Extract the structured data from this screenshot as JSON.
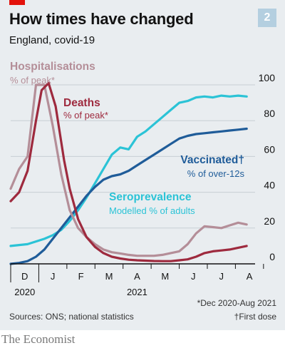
{
  "header": {
    "title": "How times have changed",
    "subtitle": "England, covid-19",
    "chart_number": "2"
  },
  "footer": {
    "note_dates": "*Dec 2020-Aug 2021",
    "note_dose": "†First dose",
    "sources": "Sources: ONS; national statistics",
    "brand": "The Economist"
  },
  "chart_data": {
    "type": "line",
    "ylim": [
      0,
      100
    ],
    "xlim": [
      0,
      8.7
    ],
    "yticks": [
      0,
      20,
      40,
      60,
      80,
      100
    ],
    "month_labels": [
      "D",
      "J",
      "F",
      "M",
      "A",
      "M",
      "J",
      "J",
      "A"
    ],
    "year_labels": [
      "2020",
      "2021"
    ],
    "grid": true,
    "series": [
      {
        "name": "Hospitalisations",
        "unit": "% of peak*",
        "color": "#b48e98",
        "points": [
          [
            0.0,
            42
          ],
          [
            0.3,
            53
          ],
          [
            0.6,
            60
          ],
          [
            0.9,
            100
          ],
          [
            1.2,
            100
          ],
          [
            1.5,
            77
          ],
          [
            1.8,
            50
          ],
          [
            2.1,
            30
          ],
          [
            2.4,
            20
          ],
          [
            2.7,
            15
          ],
          [
            3.0,
            11
          ],
          [
            3.3,
            8
          ],
          [
            3.6,
            6.5
          ],
          [
            3.9,
            5.8
          ],
          [
            4.2,
            5
          ],
          [
            4.5,
            4.5
          ],
          [
            4.8,
            4.5
          ],
          [
            5.1,
            4.5
          ],
          [
            5.4,
            5
          ],
          [
            5.7,
            6
          ],
          [
            6.0,
            7
          ],
          [
            6.3,
            11
          ],
          [
            6.6,
            17
          ],
          [
            6.9,
            21
          ],
          [
            7.2,
            20.5
          ],
          [
            7.5,
            20
          ],
          [
            7.8,
            21.5
          ],
          [
            8.1,
            23
          ],
          [
            8.4,
            22
          ]
        ]
      },
      {
        "name": "Deaths",
        "unit": "% of peak*",
        "color": "#9e2a3e",
        "points": [
          [
            0.0,
            35
          ],
          [
            0.3,
            40
          ],
          [
            0.6,
            52
          ],
          [
            0.9,
            80
          ],
          [
            1.1,
            97
          ],
          [
            1.35,
            101
          ],
          [
            1.6,
            88
          ],
          [
            1.9,
            58
          ],
          [
            2.1,
            42
          ],
          [
            2.4,
            25
          ],
          [
            2.7,
            15
          ],
          [
            3.0,
            9.5
          ],
          [
            3.3,
            6
          ],
          [
            3.6,
            4
          ],
          [
            3.9,
            3
          ],
          [
            4.2,
            2.3
          ],
          [
            4.5,
            2
          ],
          [
            4.8,
            1.8
          ],
          [
            5.1,
            1.6
          ],
          [
            5.4,
            1.5
          ],
          [
            5.7,
            1.5
          ],
          [
            6.0,
            2
          ],
          [
            6.3,
            2.5
          ],
          [
            6.6,
            4
          ],
          [
            6.9,
            6
          ],
          [
            7.2,
            7
          ],
          [
            7.5,
            7.5
          ],
          [
            7.8,
            8
          ],
          [
            8.1,
            9
          ],
          [
            8.4,
            10
          ]
        ]
      },
      {
        "name": "Vaccinated†",
        "unit": "% of over-12s",
        "color": "#1f5c99",
        "points": [
          [
            0.0,
            0
          ],
          [
            0.3,
            0.5
          ],
          [
            0.6,
            1.5
          ],
          [
            0.9,
            4
          ],
          [
            1.2,
            8
          ],
          [
            1.5,
            14
          ],
          [
            1.8,
            20
          ],
          [
            2.1,
            26
          ],
          [
            2.4,
            32
          ],
          [
            2.7,
            38
          ],
          [
            3.0,
            43
          ],
          [
            3.3,
            47
          ],
          [
            3.6,
            49
          ],
          [
            3.9,
            50
          ],
          [
            4.2,
            52
          ],
          [
            4.5,
            55
          ],
          [
            4.8,
            58
          ],
          [
            5.1,
            61
          ],
          [
            5.4,
            64
          ],
          [
            5.7,
            67
          ],
          [
            6.0,
            70
          ],
          [
            6.3,
            71.5
          ],
          [
            6.6,
            72.5
          ],
          [
            6.9,
            73
          ],
          [
            7.2,
            73.5
          ],
          [
            7.5,
            74
          ],
          [
            7.8,
            74.5
          ],
          [
            8.1,
            75
          ],
          [
            8.4,
            75.5
          ]
        ]
      },
      {
        "name": "Seroprevalence",
        "unit": "Modelled % of adults",
        "color": "#2bc3d6",
        "points": [
          [
            0.0,
            10
          ],
          [
            0.3,
            10.5
          ],
          [
            0.6,
            11
          ],
          [
            0.9,
            12.5
          ],
          [
            1.2,
            14
          ],
          [
            1.5,
            16
          ],
          [
            1.8,
            19
          ],
          [
            2.1,
            24
          ],
          [
            2.4,
            30
          ],
          [
            2.7,
            37
          ],
          [
            3.0,
            45
          ],
          [
            3.3,
            53
          ],
          [
            3.6,
            61
          ],
          [
            3.9,
            65
          ],
          [
            4.2,
            64
          ],
          [
            4.5,
            71
          ],
          [
            4.8,
            74
          ],
          [
            5.1,
            78
          ],
          [
            5.4,
            82
          ],
          [
            5.7,
            86
          ],
          [
            6.0,
            90
          ],
          [
            6.3,
            91
          ],
          [
            6.6,
            93
          ],
          [
            6.9,
            93.5
          ],
          [
            7.2,
            93
          ],
          [
            7.5,
            94
          ],
          [
            7.8,
            93.5
          ],
          [
            8.1,
            94
          ],
          [
            8.4,
            93.5
          ]
        ]
      }
    ]
  }
}
